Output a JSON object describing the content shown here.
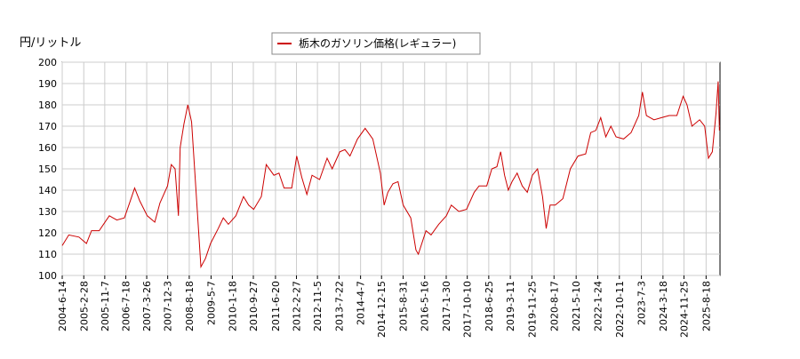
{
  "chart_data": {
    "type": "line",
    "y_label": "円/リットル",
    "grid": true,
    "legend_position": "top",
    "xlim": [
      "2004-6-14",
      "2026-2-1"
    ],
    "ylim": [
      100,
      200
    ],
    "yticks": [
      100,
      110,
      120,
      130,
      140,
      150,
      160,
      170,
      180,
      190,
      200
    ],
    "xticks": [
      "2004-6-14",
      "2005-2-28",
      "2005-11-7",
      "2006-7-18",
      "2007-3-26",
      "2007-12-3",
      "2008-8-18",
      "2009-5-7",
      "2010-1-18",
      "2010-9-27",
      "2011-6-20",
      "2012-2-27",
      "2012-11-5",
      "2013-7-22",
      "2014-4-7",
      "2014-12-15",
      "2015-8-31",
      "2016-5-16",
      "2017-1-30",
      "2017-10-10",
      "2018-6-25",
      "2019-3-11",
      "2019-11-25",
      "2020-8-17",
      "2021-5-10",
      "2022-1-24",
      "2022-10-11",
      "2023-7-3",
      "2024-3-18",
      "2024-11-25",
      "2025-8-18"
    ],
    "series": [
      {
        "name": "栃木のガソリン価格(レギュラー)",
        "color": "#cc0000",
        "x": [
          "2004-6-14",
          "2004-9-1",
          "2005-1-1",
          "2005-4-1",
          "2005-6-1",
          "2005-9-1",
          "2006-1-1",
          "2006-4-1",
          "2006-7-1",
          "2006-9-1",
          "2006-11-1",
          "2007-1-1",
          "2007-4-1",
          "2007-7-1",
          "2007-9-1",
          "2007-12-1",
          "2008-1-15",
          "2008-3-1",
          "2008-4-10",
          "2008-5-1",
          "2008-6-15",
          "2008-8-1",
          "2008-9-15",
          "2008-11-15",
          "2009-1-5",
          "2009-3-1",
          "2009-5-1",
          "2009-8-1",
          "2009-10-1",
          "2009-12-1",
          "2010-3-1",
          "2010-6-1",
          "2010-8-1",
          "2010-10-1",
          "2011-1-1",
          "2011-3-1",
          "2011-6-1",
          "2011-8-1",
          "2011-10-1",
          "2012-1-1",
          "2012-3-1",
          "2012-5-1",
          "2012-7-1",
          "2012-9-1",
          "2012-12-1",
          "2013-3-1",
          "2013-5-1",
          "2013-8-1",
          "2013-10-1",
          "2013-12-1",
          "2014-3-1",
          "2014-6-1",
          "2014-9-1",
          "2014-12-1",
          "2015-1-15",
          "2015-3-1",
          "2015-5-1",
          "2015-7-1",
          "2015-9-1",
          "2015-12-1",
          "2016-2-1",
          "2016-3-1",
          "2016-6-1",
          "2016-8-1",
          "2016-11-1",
          "2017-2-1",
          "2017-4-1",
          "2017-7-1",
          "2017-10-1",
          "2018-1-1",
          "2018-3-1",
          "2018-6-1",
          "2018-8-1",
          "2018-10-1",
          "2018-11-15",
          "2019-1-1",
          "2019-2-15",
          "2019-4-1",
          "2019-6-1",
          "2019-8-1",
          "2019-10-1",
          "2019-12-1",
          "2020-2-1",
          "2020-4-1",
          "2020-5-15",
          "2020-7-1",
          "2020-9-1",
          "2020-12-1",
          "2021-3-1",
          "2021-6-1",
          "2021-9-1",
          "2021-11-1",
          "2022-1-1",
          "2022-3-1",
          "2022-5-1",
          "2022-7-1",
          "2022-9-1",
          "2022-12-1",
          "2023-3-1",
          "2023-6-1",
          "2023-7-15",
          "2023-9-1",
          "2023-12-1",
          "2024-3-1",
          "2024-6-1",
          "2024-9-1",
          "2024-11-15",
          "2025-1-1",
          "2025-3-1",
          "2025-6-1",
          "2025-8-1",
          "2025-9-15",
          "2025-11-1",
          "2025-12-15",
          "2026-1-10",
          "2026-1-25"
        ],
        "values": [
          114,
          119,
          118,
          115,
          121,
          121,
          128,
          126,
          127,
          134,
          141,
          135,
          128,
          125,
          134,
          142,
          152,
          150,
          128,
          160,
          171,
          180,
          172,
          135,
          104,
          108,
          115,
          122,
          127,
          124,
          128,
          137,
          133,
          131,
          137,
          152,
          147,
          148,
          141,
          141,
          156,
          146,
          138,
          147,
          145,
          155,
          150,
          158,
          159,
          156,
          164,
          169,
          164,
          148,
          133,
          139,
          143,
          144,
          133,
          127,
          112,
          110,
          121,
          119,
          124,
          128,
          133,
          130,
          131,
          139,
          142,
          142,
          150,
          151,
          158,
          147,
          140,
          144,
          148,
          142,
          139,
          147,
          150,
          137,
          122,
          133,
          133,
          136,
          150,
          156,
          157,
          167,
          168,
          174,
          165,
          170,
          165,
          164,
          167,
          175,
          186,
          175,
          173,
          174,
          175,
          175,
          184,
          180,
          170,
          173,
          170,
          155,
          158,
          176,
          191,
          168
        ]
      }
    ]
  }
}
